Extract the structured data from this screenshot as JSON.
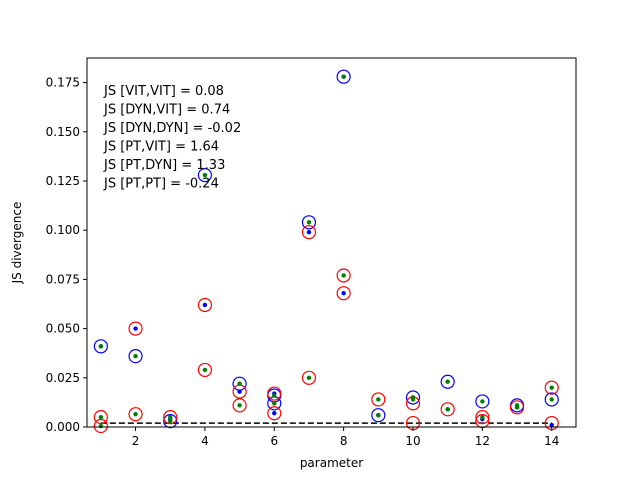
{
  "chart_data": {
    "type": "scatter",
    "xlabel": "parameter",
    "ylabel": "JS divergence",
    "xlim": [
      0.6,
      14.7
    ],
    "ylim": [
      0.0,
      0.1875
    ],
    "xticks": [
      2,
      4,
      6,
      8,
      10,
      12,
      14
    ],
    "yticks": [
      0.0,
      0.025,
      0.05,
      0.075,
      0.1,
      0.125,
      0.15,
      0.175
    ],
    "ytick_labels": [
      "0.000",
      "0.025",
      "0.050",
      "0.075",
      "0.100",
      "0.125",
      "0.150",
      "0.175"
    ],
    "grid": false,
    "annotations": [
      "JS [VIT,VIT] = 0.08",
      "JS [DYN,VIT] = 0.74",
      "JS [DYN,DYN] = -0.02",
      "JS [PT,VIT] = 1.64",
      "JS [PT,DYN] = 1.33",
      "JS [PT,PT] = -0.24"
    ],
    "hline": {
      "y": 0.002,
      "style": "dashed",
      "color": "#000000"
    },
    "colors": {
      "blue": "#0000ff",
      "red": "#ff0000",
      "green": "#008000"
    },
    "series": [
      {
        "marker": "open-circle",
        "color": "#0000ff",
        "x": [
          1,
          2,
          3,
          4,
          5,
          6,
          6,
          7,
          8,
          9,
          10,
          11,
          12,
          13,
          14
        ],
        "y": [
          0.041,
          0.036,
          0.003,
          0.128,
          0.022,
          0.016,
          0.012,
          0.104,
          0.178,
          0.006,
          0.015,
          0.023,
          0.013,
          0.011,
          0.014
        ]
      },
      {
        "marker": "dot",
        "color": "#0000ff",
        "x": [
          1,
          2,
          3,
          4,
          5,
          6,
          6,
          7,
          8,
          8,
          9,
          10,
          11,
          12,
          13,
          14
        ],
        "y": [
          0.041,
          0.05,
          0.004,
          0.062,
          0.018,
          0.017,
          0.007,
          0.099,
          0.178,
          0.068,
          0.006,
          0.015,
          0.009,
          0.004,
          0.01,
          0.001
        ]
      },
      {
        "marker": "open-circle",
        "color": "#ff0000",
        "x": [
          1,
          1,
          2,
          2,
          3,
          4,
          4,
          5,
          5,
          6,
          6,
          7,
          7,
          8,
          8,
          9,
          10,
          10,
          11,
          12,
          12,
          13,
          14,
          14
        ],
        "y": [
          0.005,
          0.0005,
          0.05,
          0.0065,
          0.005,
          0.062,
          0.029,
          0.018,
          0.011,
          0.017,
          0.007,
          0.099,
          0.025,
          0.077,
          0.068,
          0.014,
          0.012,
          0.002,
          0.009,
          0.005,
          0.003,
          0.01,
          0.02,
          0.002
        ]
      },
      {
        "marker": "dot",
        "color": "#008000",
        "x": [
          1,
          1,
          1,
          2,
          2,
          3,
          3,
          4,
          4,
          5,
          5,
          6,
          6,
          7,
          7,
          8,
          8,
          9,
          9,
          10,
          10,
          11,
          11,
          12,
          12,
          13,
          13,
          14,
          14
        ],
        "y": [
          0.041,
          0.005,
          0.0005,
          0.036,
          0.0065,
          0.005,
          0.003,
          0.128,
          0.029,
          0.022,
          0.011,
          0.016,
          0.012,
          0.104,
          0.025,
          0.178,
          0.077,
          0.014,
          0.006,
          0.015,
          0.014,
          0.023,
          0.009,
          0.013,
          0.005,
          0.011,
          0.01,
          0.014,
          0.02
        ]
      }
    ]
  }
}
